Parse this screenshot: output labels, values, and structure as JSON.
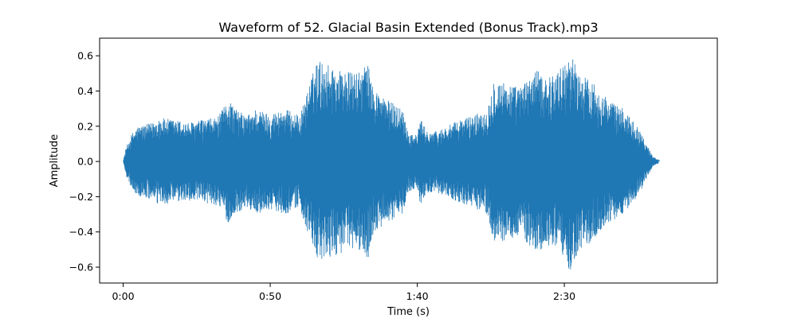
{
  "chart_data": {
    "type": "line",
    "title": "Waveform of 52. Glacial Basin Extended (Bonus Track).mp3",
    "xlabel": "Time (s)",
    "ylabel": "Amplitude",
    "xlim": [
      -8,
      202
    ],
    "ylim": [
      -0.69,
      0.7
    ],
    "x_ticks": [
      {
        "value": 0,
        "label": "0:00"
      },
      {
        "value": 50,
        "label": "0:50"
      },
      {
        "value": 100,
        "label": "1:40"
      },
      {
        "value": 150,
        "label": "2:30"
      }
    ],
    "y_ticks": [
      {
        "value": 0.6,
        "label": "0.6"
      },
      {
        "value": 0.4,
        "label": "0.4"
      },
      {
        "value": 0.2,
        "label": "0.2"
      },
      {
        "value": 0.0,
        "label": "0.0"
      },
      {
        "value": -0.2,
        "label": "−0.2"
      },
      {
        "value": -0.4,
        "label": "−0.4"
      },
      {
        "value": -0.6,
        "label": "−0.6"
      }
    ],
    "series_color": "#1f77b4",
    "duration": 182,
    "envelope": [
      [
        0,
        0.0
      ],
      [
        1,
        0.08
      ],
      [
        3,
        0.16
      ],
      [
        5,
        0.2
      ],
      [
        10,
        0.22
      ],
      [
        12,
        0.25
      ],
      [
        20,
        0.23
      ],
      [
        22,
        0.22
      ],
      [
        28,
        0.24
      ],
      [
        32,
        0.25
      ],
      [
        34,
        0.3
      ],
      [
        36,
        0.36
      ],
      [
        38,
        0.3
      ],
      [
        42,
        0.26
      ],
      [
        45,
        0.3
      ],
      [
        50,
        0.27
      ],
      [
        55,
        0.3
      ],
      [
        60,
        0.26
      ],
      [
        63,
        0.42
      ],
      [
        66,
        0.58
      ],
      [
        70,
        0.55
      ],
      [
        74,
        0.52
      ],
      [
        80,
        0.5
      ],
      [
        83,
        0.57
      ],
      [
        85,
        0.42
      ],
      [
        90,
        0.35
      ],
      [
        95,
        0.3
      ],
      [
        97,
        0.17
      ],
      [
        100,
        0.15
      ],
      [
        101,
        0.25
      ],
      [
        103,
        0.18
      ],
      [
        106,
        0.17
      ],
      [
        110,
        0.2
      ],
      [
        115,
        0.24
      ],
      [
        120,
        0.27
      ],
      [
        124,
        0.3
      ],
      [
        126,
        0.47
      ],
      [
        130,
        0.45
      ],
      [
        135,
        0.42
      ],
      [
        140,
        0.52
      ],
      [
        145,
        0.48
      ],
      [
        150,
        0.55
      ],
      [
        152,
        0.63
      ],
      [
        155,
        0.5
      ],
      [
        160,
        0.45
      ],
      [
        165,
        0.35
      ],
      [
        170,
        0.3
      ],
      [
        175,
        0.2
      ],
      [
        178,
        0.1
      ],
      [
        180,
        0.03
      ],
      [
        182,
        0.01
      ]
    ]
  }
}
